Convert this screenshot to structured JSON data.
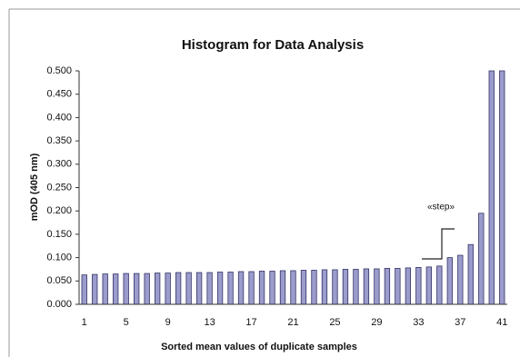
{
  "chart_data": {
    "type": "bar",
    "title": "Histogram for Data Analysis",
    "x_label": "Sorted mean values of duplicate samples",
    "y_label": "mOD (405 nm)",
    "annotation": "«step»",
    "categories": [
      1,
      null,
      null,
      null,
      5,
      null,
      null,
      null,
      9,
      null,
      null,
      null,
      13,
      null,
      null,
      null,
      17,
      null,
      null,
      null,
      21,
      null,
      null,
      null,
      25,
      null,
      null,
      null,
      29,
      null,
      null,
      null,
      33,
      null,
      null,
      null,
      37,
      null,
      null,
      null,
      41
    ],
    "values": [
      0.063,
      0.064,
      0.065,
      0.065,
      0.066,
      0.066,
      0.066,
      0.067,
      0.067,
      0.068,
      0.068,
      0.068,
      0.068,
      0.069,
      0.069,
      0.07,
      0.07,
      0.071,
      0.071,
      0.072,
      0.072,
      0.073,
      0.073,
      0.074,
      0.074,
      0.075,
      0.075,
      0.076,
      0.076,
      0.077,
      0.077,
      0.078,
      0.079,
      0.08,
      0.082,
      0.1,
      0.105,
      0.128,
      0.195,
      0.5,
      0.5
    ],
    "color": "#9b9bcc",
    "ylim": [
      0,
      0.5
    ],
    "yticks": [
      {
        "value": 0,
        "label": "0.000"
      },
      {
        "value": 0.05,
        "label": "0.050"
      },
      {
        "value": 0.1,
        "label": "0.100"
      },
      {
        "value": 0.15,
        "label": "0.150"
      },
      {
        "value": 0.2,
        "label": "0.200"
      },
      {
        "value": 0.25,
        "label": "0.250"
      },
      {
        "value": 0.3,
        "label": "0.300"
      },
      {
        "value": 0.35,
        "label": "0.350"
      },
      {
        "value": 0.4,
        "label": "0.400"
      },
      {
        "value": 0.45,
        "label": "0.450"
      },
      {
        "value": 0.5,
        "label": "0.500"
      }
    ],
    "grid": false
  }
}
